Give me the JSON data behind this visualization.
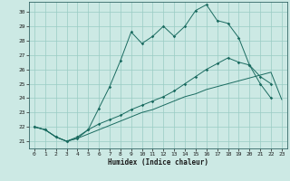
{
  "xlabel": "Humidex (Indice chaleur)",
  "background_color": "#cce9e4",
  "grid_color": "#99ccc4",
  "line_color": "#1a6b60",
  "xlim": [
    -0.5,
    23.5
  ],
  "ylim": [
    20.5,
    30.7
  ],
  "yticks": [
    21,
    22,
    23,
    24,
    25,
    26,
    27,
    28,
    29,
    30
  ],
  "xticks": [
    0,
    1,
    2,
    3,
    4,
    5,
    6,
    7,
    8,
    9,
    10,
    11,
    12,
    13,
    14,
    15,
    16,
    17,
    18,
    19,
    20,
    21,
    22,
    23
  ],
  "series1_x": [
    0,
    1,
    2,
    3,
    4,
    5,
    6,
    7,
    8,
    9,
    10,
    11,
    12,
    13,
    14,
    15,
    16,
    17,
    18,
    19,
    20,
    21,
    22,
    23
  ],
  "series1_y": [
    22.0,
    21.8,
    21.3,
    21.0,
    21.2,
    21.5,
    21.8,
    22.1,
    22.4,
    22.7,
    23.0,
    23.2,
    23.5,
    23.8,
    24.1,
    24.3,
    24.6,
    24.8,
    25.0,
    25.2,
    25.4,
    25.6,
    25.8,
    23.9
  ],
  "series2_x": [
    0,
    1,
    2,
    3,
    4,
    5,
    6,
    7,
    8,
    9,
    10,
    11,
    12,
    13,
    14,
    15,
    16,
    17,
    18,
    19,
    20,
    21,
    22
  ],
  "series2_y": [
    22.0,
    21.8,
    21.3,
    21.0,
    21.3,
    21.8,
    22.2,
    22.5,
    22.8,
    23.2,
    23.5,
    23.8,
    24.1,
    24.5,
    25.0,
    25.5,
    26.0,
    26.4,
    26.8,
    26.5,
    26.3,
    25.5,
    25.0
  ],
  "series3_x": [
    0,
    1,
    2,
    3,
    4,
    5,
    6,
    7,
    8,
    9,
    10,
    11,
    12,
    13,
    14,
    15,
    16,
    17,
    18,
    19,
    20,
    21,
    22
  ],
  "series3_y": [
    22.0,
    21.8,
    21.3,
    21.0,
    21.2,
    21.8,
    23.3,
    24.8,
    26.6,
    28.6,
    27.8,
    28.3,
    29.0,
    28.3,
    29.0,
    30.1,
    30.5,
    29.4,
    29.2,
    28.2,
    26.3,
    25.0,
    24.0
  ]
}
